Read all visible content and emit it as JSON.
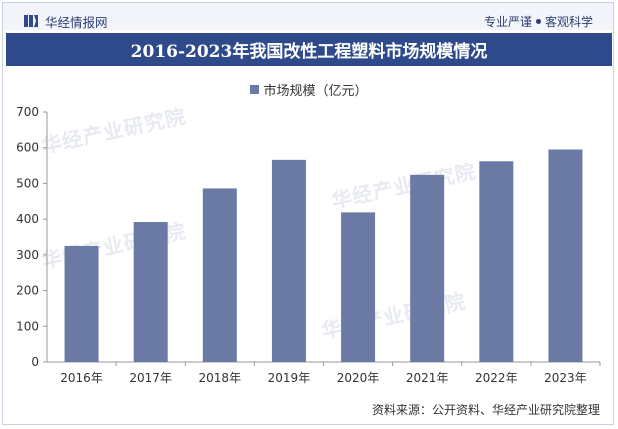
{
  "header": {
    "brand_name": "华经情报网",
    "tagline_left": "专业严谨",
    "tagline_right": "客观科学"
  },
  "title": "2016-2023年我国改性工程塑料市场规模情况",
  "source": "资料来源：公开资料、华经产业研究院整理",
  "watermark": "华经产业研究院",
  "colors": {
    "bar": "#6b7aa4",
    "title_bg": "#2e4a8b",
    "brand": "#2b3f73"
  },
  "chart_data": {
    "type": "bar",
    "categories": [
      "2016年",
      "2017年",
      "2018年",
      "2019年",
      "2020年",
      "2021年",
      "2022年",
      "2023年"
    ],
    "series": [
      {
        "name": "市场规模（亿元）",
        "values": [
          325,
          392,
          486,
          566,
          419,
          524,
          562,
          595
        ]
      }
    ],
    "ylim": [
      0,
      700
    ],
    "yticks": [
      0,
      100,
      200,
      300,
      400,
      500,
      600,
      700
    ],
    "legend_position": "top-center",
    "grid": false
  }
}
